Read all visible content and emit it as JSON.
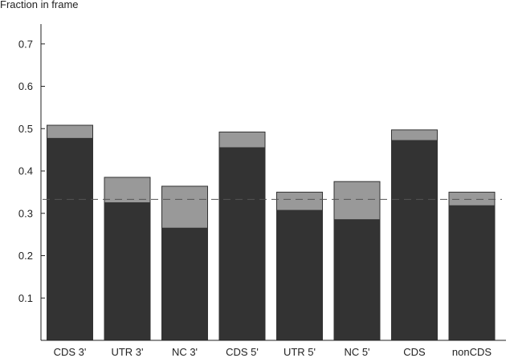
{
  "chart_data": {
    "type": "bar",
    "ylabel": "Fraction in frame",
    "xlabel": "",
    "ylim": [
      0,
      0.76
    ],
    "yticks": [
      0.1,
      0.2,
      0.3,
      0.4,
      0.5,
      0.6,
      0.7
    ],
    "ytick_labels": [
      "0.1",
      "0.2",
      "0.3",
      "0.4",
      "0.5",
      "0.6",
      "0.7"
    ],
    "categories": [
      "CDS 3'",
      "UTR 3'",
      "NC 3'",
      "CDS 5'",
      "UTR 5'",
      "NC 5'",
      "CDS",
      "nonCDS"
    ],
    "series": [
      {
        "values": [
          0.477,
          0.325,
          0.265,
          0.455,
          0.307,
          0.285,
          0.472,
          0.318
        ],
        "color": "#333333"
      },
      {
        "values": [
          0.508,
          0.385,
          0.364,
          0.492,
          0.35,
          0.375,
          0.497,
          0.35
        ],
        "color": "#999999"
      }
    ],
    "reference_line": {
      "y": 0.333,
      "style": "dashed"
    },
    "grid": false,
    "legend": "none"
  }
}
